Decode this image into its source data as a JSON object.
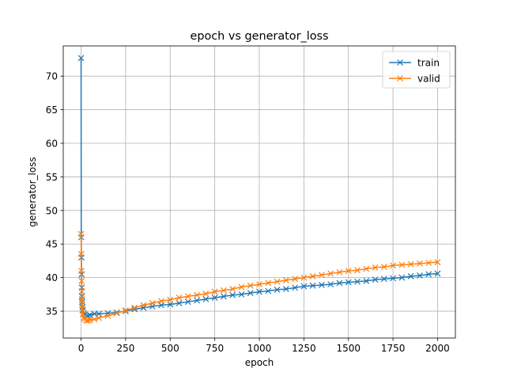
{
  "chart_data": {
    "type": "line",
    "title": "epoch vs generator_loss",
    "xlabel": "epoch",
    "ylabel": "generator_loss",
    "xlim": [
      -100,
      2100
    ],
    "ylim": [
      31,
      74.5
    ],
    "xticks": [
      0,
      250,
      500,
      750,
      1000,
      1250,
      1500,
      1750,
      2000
    ],
    "xtick_labels": [
      "0",
      "250",
      "500",
      "750",
      "1000",
      "1250",
      "1500",
      "1750",
      "2000"
    ],
    "yticks": [
      35,
      40,
      45,
      50,
      55,
      60,
      65,
      70
    ],
    "ytick_labels": [
      "35",
      "40",
      "45",
      "50",
      "55",
      "60",
      "65",
      "70"
    ],
    "grid": true,
    "legend_position": "top-right",
    "marker": "x",
    "series": [
      {
        "name": "train",
        "color": "#1f77b4",
        "x": [
          0,
          1,
          2,
          3,
          4,
          5,
          6,
          8,
          10,
          15,
          20,
          30,
          40,
          50,
          75,
          100,
          150,
          200,
          250,
          300,
          350,
          400,
          450,
          500,
          550,
          600,
          650,
          700,
          750,
          800,
          850,
          900,
          950,
          1000,
          1050,
          1100,
          1150,
          1200,
          1250,
          1300,
          1350,
          1400,
          1450,
          1500,
          1550,
          1600,
          1650,
          1700,
          1750,
          1800,
          1850,
          1900,
          1950,
          2000
        ],
        "y": [
          72.7,
          46.0,
          43.0,
          40.5,
          38.5,
          37.2,
          36.4,
          35.6,
          35.1,
          34.7,
          34.5,
          34.3,
          34.3,
          34.4,
          34.6,
          34.6,
          34.7,
          34.8,
          35.0,
          35.3,
          35.5,
          35.7,
          35.9,
          36.0,
          36.2,
          36.4,
          36.6,
          36.8,
          37.0,
          37.2,
          37.4,
          37.5,
          37.7,
          37.9,
          38.0,
          38.2,
          38.3,
          38.5,
          38.7,
          38.8,
          38.9,
          39.0,
          39.2,
          39.3,
          39.4,
          39.5,
          39.7,
          39.8,
          39.9,
          40.0,
          40.2,
          40.3,
          40.5,
          40.6
        ]
      },
      {
        "name": "valid",
        "color": "#ff7f0e",
        "x": [
          0,
          1,
          2,
          3,
          4,
          5,
          6,
          8,
          10,
          15,
          20,
          30,
          40,
          50,
          75,
          100,
          150,
          200,
          250,
          300,
          350,
          400,
          450,
          500,
          550,
          600,
          650,
          700,
          750,
          800,
          850,
          900,
          950,
          1000,
          1050,
          1100,
          1150,
          1200,
          1250,
          1300,
          1350,
          1400,
          1450,
          1500,
          1550,
          1600,
          1650,
          1700,
          1750,
          1800,
          1850,
          1900,
          1950,
          2000
        ],
        "y": [
          46.5,
          43.5,
          41.0,
          39.5,
          38.0,
          36.8,
          36.0,
          35.2,
          34.6,
          34.0,
          33.8,
          33.6,
          33.6,
          33.7,
          33.8,
          34.0,
          34.3,
          34.7,
          35.1,
          35.5,
          35.9,
          36.2,
          36.5,
          36.7,
          37.0,
          37.2,
          37.4,
          37.6,
          37.9,
          38.1,
          38.3,
          38.6,
          38.8,
          39.0,
          39.2,
          39.4,
          39.6,
          39.8,
          40.0,
          40.2,
          40.4,
          40.6,
          40.8,
          41.0,
          41.1,
          41.3,
          41.5,
          41.6,
          41.8,
          41.9,
          42.0,
          42.1,
          42.2,
          42.3
        ]
      }
    ]
  }
}
